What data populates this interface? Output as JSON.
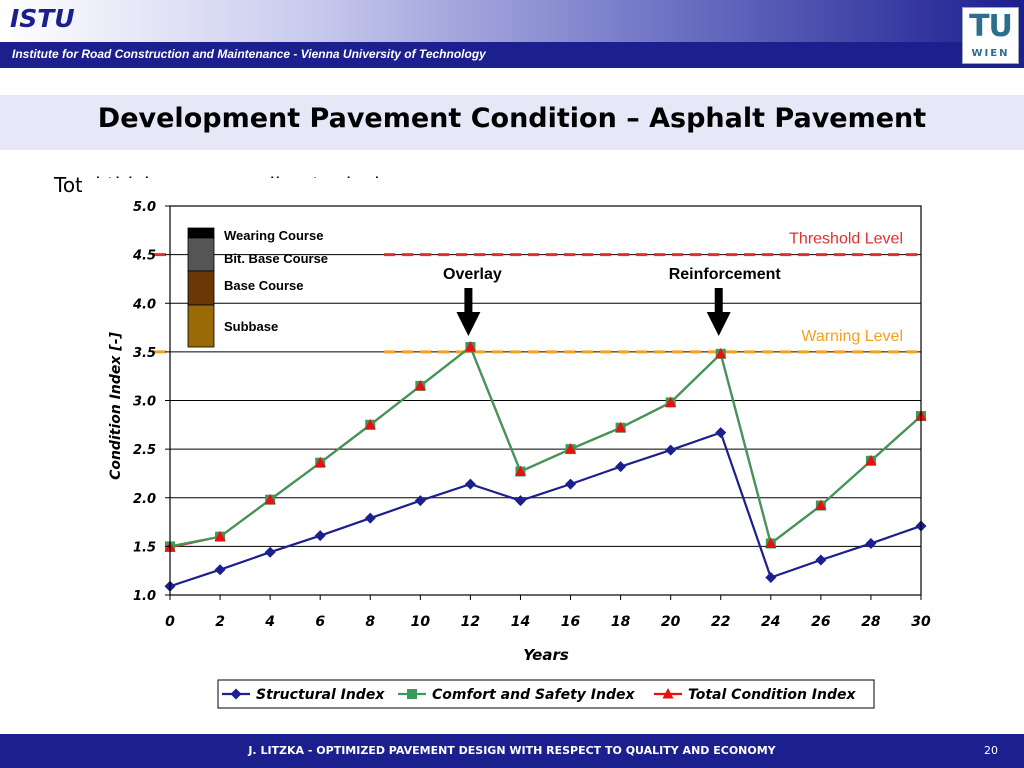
{
  "header": {
    "brand": "ISTU",
    "institute": "Institute for Road Construction and Maintenance - Vienna University of Technology",
    "logo_top": "TU",
    "logo_bottom": "WIEN"
  },
  "slide": {
    "title": "Development Pavement Condition – Asphalt Pavement",
    "subtitle": "Total thickness according to design"
  },
  "footer": {
    "text": "J. LITZKA - OPTIMIZED PAVEMENT DESIGN WITH RESPECT TO QUALITY AND ECONOMY",
    "page": "20"
  },
  "chart_data": {
    "type": "line",
    "xlabel": "Years",
    "ylabel": "Condition Index [-]",
    "x": [
      0,
      2,
      4,
      6,
      8,
      10,
      12,
      14,
      16,
      18,
      20,
      22,
      24,
      26,
      28,
      30
    ],
    "xlim": [
      0,
      30
    ],
    "ylim": [
      1.0,
      5.0
    ],
    "x_ticks": [
      "0",
      "2",
      "4",
      "6",
      "8",
      "10",
      "12",
      "14",
      "16",
      "18",
      "20",
      "22",
      "24",
      "26",
      "28",
      "30"
    ],
    "y_ticks": [
      "1.0",
      "1.5",
      "2.0",
      "2.5",
      "3.0",
      "3.5",
      "4.0",
      "4.5",
      "5.0"
    ],
    "grid": "horizontal",
    "legend_position": "bottom",
    "series": [
      {
        "name": "Structural Index",
        "color": "#1c1f8e",
        "marker": "diamond",
        "values": [
          1.09,
          1.26,
          1.44,
          1.61,
          1.79,
          1.97,
          2.14,
          1.97,
          2.14,
          2.32,
          2.49,
          2.67,
          1.18,
          1.36,
          1.53,
          1.71
        ]
      },
      {
        "name": "Comfort and Safety Index",
        "color": "#3a9a5a",
        "marker": "square",
        "values": [
          1.5,
          1.6,
          1.98,
          2.36,
          2.75,
          3.15,
          3.55,
          2.27,
          2.5,
          2.72,
          2.98,
          3.48,
          1.53,
          1.92,
          2.38,
          2.84
        ]
      },
      {
        "name": "Total Condition Index",
        "color": "#e81010",
        "marker": "triangle",
        "values": [
          1.49,
          1.6,
          1.98,
          2.36,
          2.75,
          3.15,
          3.55,
          2.27,
          2.5,
          2.72,
          2.98,
          3.48,
          1.53,
          1.92,
          2.38,
          2.84
        ]
      }
    ],
    "reference_lines": [
      {
        "label": "Threshold Level",
        "value": 4.5,
        "color": "#e03030"
      },
      {
        "label": "Warning Level",
        "value": 3.5,
        "color": "#f5a020"
      }
    ],
    "annotations": [
      {
        "label": "Overlay",
        "x": 12
      },
      {
        "label": "Reinforcement",
        "x": 22
      }
    ],
    "layers": [
      {
        "label": "Wearing Course",
        "color": "#000000"
      },
      {
        "label": "Bit. Base Course",
        "color": "#555555"
      },
      {
        "label": "Base Course",
        "color": "#6a3805"
      },
      {
        "label": "Subbase",
        "color": "#9a6a08"
      }
    ]
  }
}
